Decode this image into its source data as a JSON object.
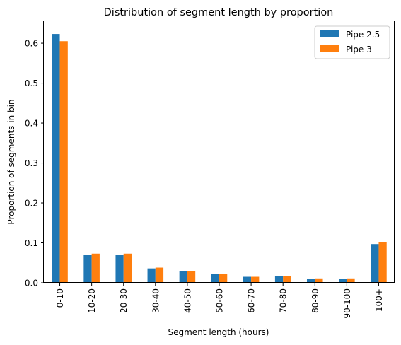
{
  "chart_data": {
    "type": "bar",
    "title": "Distribution of segment length by proportion",
    "xlabel": "Segment length (hours)",
    "ylabel": "Proportion of segments in bin",
    "categories": [
      "0-10",
      "10-20",
      "20-30",
      "30-40",
      "40-50",
      "50-60",
      "60-70",
      "70-80",
      "80-90",
      "90-100",
      "100+"
    ],
    "series": [
      {
        "name": "Pipe 2.5",
        "color": "#1f77b4",
        "values": [
          0.623,
          0.07,
          0.07,
          0.036,
          0.029,
          0.023,
          0.015,
          0.016,
          0.009,
          0.009,
          0.097
        ]
      },
      {
        "name": "Pipe 3",
        "color": "#ff7f0e",
        "values": [
          0.605,
          0.073,
          0.073,
          0.038,
          0.03,
          0.023,
          0.015,
          0.016,
          0.011,
          0.011,
          0.101
        ]
      }
    ],
    "ylim": [
      0,
      0.655
    ],
    "yticks": [
      "0.0",
      "0.1",
      "0.2",
      "0.3",
      "0.4",
      "0.5",
      "0.6"
    ],
    "legend_position": "top-right",
    "grid": false
  }
}
